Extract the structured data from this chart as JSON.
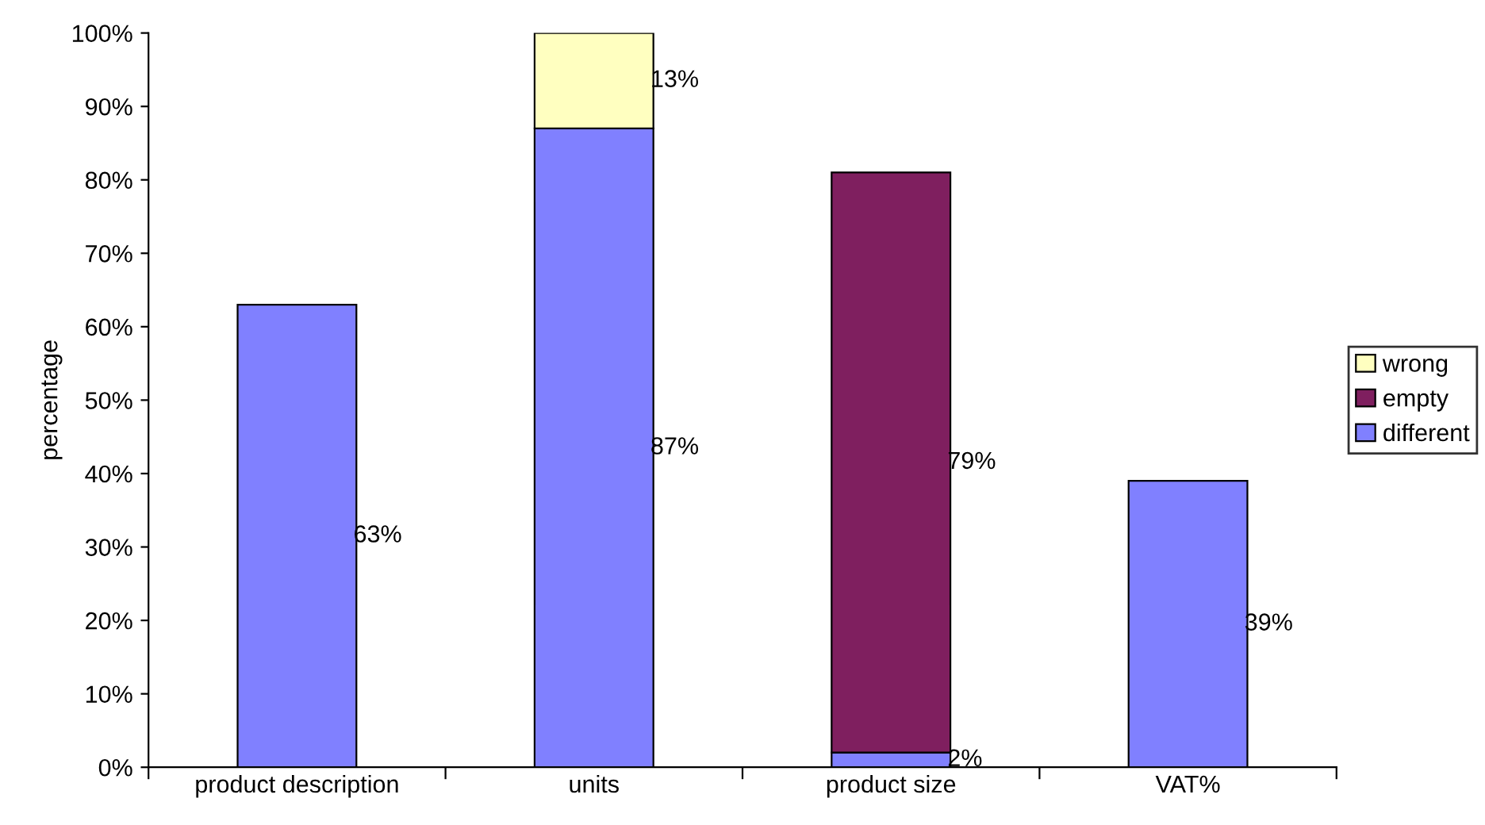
{
  "chart_data": {
    "type": "bar",
    "stacked": true,
    "ylabel": "percentage",
    "categories": [
      "product description",
      "units",
      "product size",
      "VAT%"
    ],
    "series": [
      {
        "name": "different",
        "color": "#8080ff",
        "values": [
          63,
          87,
          2,
          39
        ],
        "value_labels": [
          "63%",
          "87%",
          "2%",
          "39%"
        ]
      },
      {
        "name": "empty",
        "color": "#7f1f5f",
        "values": [
          null,
          null,
          79,
          null
        ],
        "value_labels": [
          null,
          null,
          "79%",
          null
        ]
      },
      {
        "name": "wrong",
        "color": "#ffffc0",
        "values": [
          null,
          13,
          null,
          null
        ],
        "value_labels": [
          null,
          "13%",
          null,
          null
        ]
      }
    ],
    "ylim": [
      0,
      100
    ],
    "yticks": [
      {
        "value": 0,
        "label": "0%"
      },
      {
        "value": 10,
        "label": "10%"
      },
      {
        "value": 20,
        "label": "20%"
      },
      {
        "value": 30,
        "label": "30%"
      },
      {
        "value": 40,
        "label": "40%"
      },
      {
        "value": 50,
        "label": "50%"
      },
      {
        "value": 60,
        "label": "60%"
      },
      {
        "value": 70,
        "label": "70%"
      },
      {
        "value": 80,
        "label": "80%"
      },
      {
        "value": 90,
        "label": "90%"
      },
      {
        "value": 100,
        "label": "100%"
      }
    ],
    "grid": false,
    "legend": "right"
  }
}
